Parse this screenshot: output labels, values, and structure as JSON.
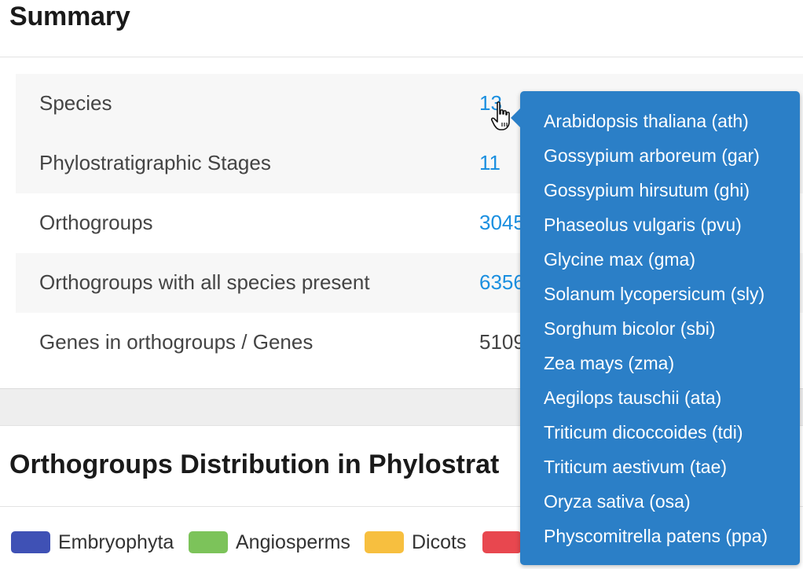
{
  "summary": {
    "title": "Summary",
    "rows": [
      {
        "label": "Species",
        "value": "13"
      },
      {
        "label": "Phylostratigraphic Stages",
        "value": "11"
      },
      {
        "label": "Orthogroups",
        "value": "3045"
      },
      {
        "label": "Orthogroups with all species present",
        "value": "6356"
      },
      {
        "label": "Genes in orthogroups / Genes",
        "value": "5109"
      }
    ]
  },
  "distribution": {
    "title": "Orthogroups Distribution in Phylostrat",
    "legend": [
      {
        "label": "Embryophyta",
        "color": "#3f51b5"
      },
      {
        "label": "Angiosperms",
        "color": "#7cc35a"
      },
      {
        "label": "Dicots",
        "color": "#f7bf3f"
      },
      {
        "label": "",
        "color": "#e8474f"
      }
    ]
  },
  "species_popover": {
    "items": [
      "Arabidopsis thaliana (ath)",
      "Gossypium arboreum (gar)",
      "Gossypium hirsutum (ghi)",
      "Phaseolus vulgaris (pvu)",
      "Glycine max (gma)",
      "Solanum lycopersicum (sly)",
      "Sorghum bicolor (sbi)",
      "Zea mays (zma)",
      "Aegilops tauschii (ata)",
      "Triticum dicoccoides (tdi)",
      "Triticum aestivum (tae)",
      "Oryza sativa (osa)",
      "Physcomitrella patens (ppa)"
    ]
  },
  "colors": {
    "link": "#1a8fe0",
    "popover_bg": "#2b7fc7"
  }
}
